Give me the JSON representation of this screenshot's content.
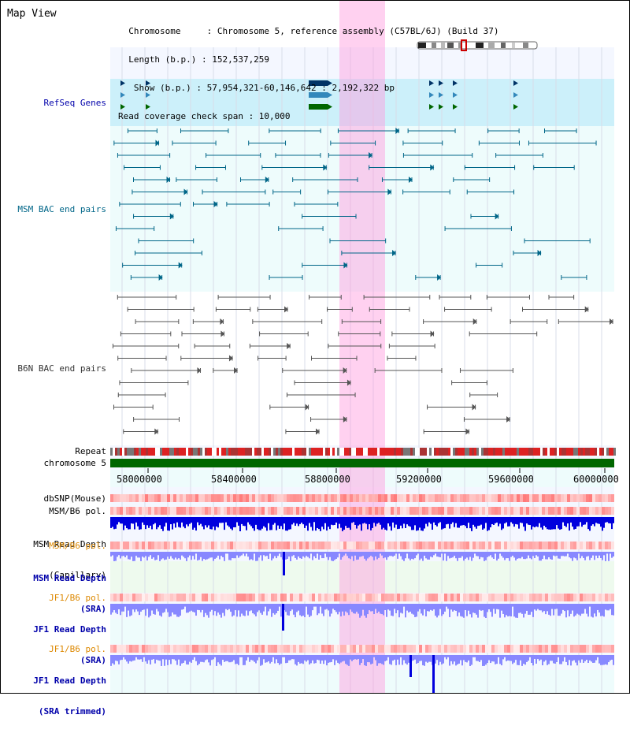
{
  "panel": {
    "title": "Map View"
  },
  "header": {
    "lines": [
      "  Chromosome     : Chromosome 5, reference assembly (C57BL/6J) (Build 37)",
      "  Length (b.p.) : 152,537,259",
      "   Show (b.p.) : 57,954,321-60,146,642 : 2,192,322 bp",
      "Read coverage check span : 10,000"
    ]
  },
  "tracks": {
    "refseq": "RefSeq Genes",
    "msm_bac": "MSM BAC end pairs",
    "b6n_bac": "B6N BAC end pairs",
    "repeat": "Repeat",
    "chrom": "chromosome 5",
    "dbsnp": "dbSNP(Mouse)",
    "msm_b6_pol": "MSM/B6 pol.",
    "msm_depth_cap_1": "MSM Read Depth",
    "msm_depth_cap_2": "(Capillary)",
    "msm_b6_pol2": "MSM/B6 pol.",
    "msm_depth_sra_1": "MSM Read Depth",
    "msm_depth_sra_2": "(SRA)",
    "jf1_pol": "JF1/B6 pol.",
    "jf1_depth_1": "JF1 Read Depth",
    "jf1_depth_2": "(SRA)",
    "jf1_pol2": "JF1/B6 pol.",
    "jf1_trim_1": "JF1 Read Depth",
    "jf1_trim_2": "(SRA trimmed)"
  },
  "axis": {
    "ticks": [
      "58000000",
      "58400000",
      "58800000",
      "59200000",
      "59600000",
      "60000000"
    ]
  },
  "colors": {
    "highlight": "#ff99dd",
    "refseq_bg": "#ccf0fa",
    "teal": "#006688",
    "grey": "#555555",
    "chrom_green": "#006600",
    "depth_blue": "#0000dd",
    "depth_light": "#8888ff"
  }
}
